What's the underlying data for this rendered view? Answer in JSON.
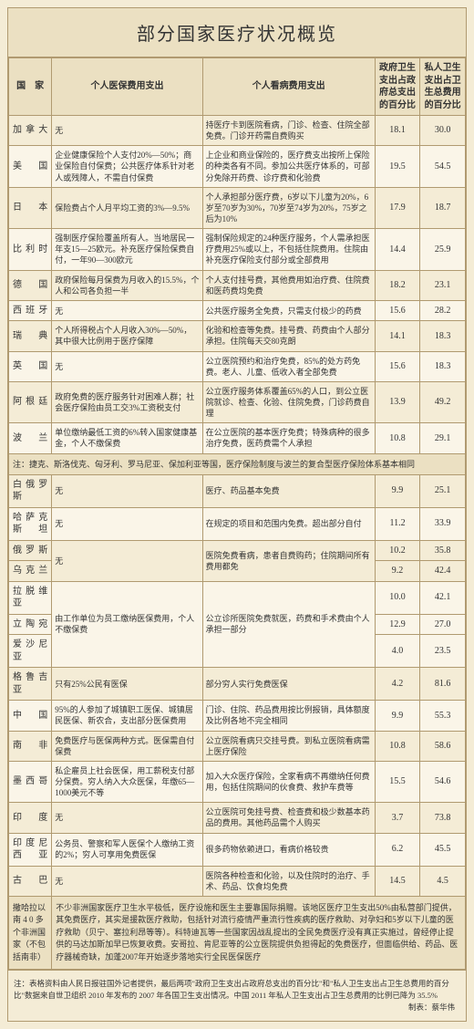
{
  "title": "部分国家医疗状况概览",
  "headers": {
    "country": "国　家",
    "premium": "个人医保费用支出",
    "treatment": "个人看病费用支出",
    "gov_pct": "政府卫生支出占政府总支出的百分比",
    "priv_pct": "私人卫生支出占卫生总费用的百分比"
  },
  "rows": [
    {
      "country": "加拿大",
      "premium": "无",
      "treatment": "持医疗卡到医院看病，门诊、检查、住院全部免费。门诊开药需自费购买",
      "gov": "18.1",
      "priv": "30.0"
    },
    {
      "country": "美　国",
      "premium": "企业健康保险个人支付20%—50%；商业保险自付保费；公共医疗体系针对老人或残障人，不需自付保费",
      "treatment": "上企业和商业保险的，医疗费支出按所上保险的种类各有不同。参加公共医疗体系的，可部分免除开药费、诊疗费和化验费",
      "gov": "19.5",
      "priv": "54.5"
    },
    {
      "country": "日　本",
      "premium": "保险费占个人月平均工资的3%—9.5%",
      "treatment": "个人承担部分医疗费，6岁以下儿童为20%，6岁至70岁为30%，70岁至74岁为20%，75岁之后为10%",
      "gov": "17.9",
      "priv": "18.7"
    },
    {
      "country": "比利时",
      "premium": "强制医疗保险覆盖所有人。当地居民一年支15—25欧元。补充医疗保险保费自付，一年90—300欧元",
      "treatment": "强制保险规定的24种医疗服务，个人需承担医疗费用25%或以上，不包括住院费用。住院由补充医疗保险支付部分或全部费用",
      "gov": "14.4",
      "priv": "25.9"
    },
    {
      "country": "德　国",
      "premium": "政府保险每月保费为月收入的15.5%，个人和公司各负担一半",
      "treatment": "个人支付挂号费，其他费用如治疗费、住院费和医药费均免费",
      "gov": "18.2",
      "priv": "23.1"
    },
    {
      "country": "西班牙",
      "premium": "无",
      "treatment": "公共医疗服务全免费，只需支付极少的药费",
      "gov": "15.6",
      "priv": "28.2"
    },
    {
      "country": "瑞　典",
      "premium": "个人所得税占个人月收入30%—50%，其中很大比例用于医疗保障",
      "treatment": "化验和检查等免费。挂号费、药费由个人部分承担。住院每天交80克朗",
      "gov": "14.1",
      "priv": "18.3"
    },
    {
      "country": "英　国",
      "premium": "无",
      "treatment": "公立医院预约和治疗免费，85%的处方药免费。老人、儿童、低收入者全部免费",
      "gov": "15.6",
      "priv": "18.3"
    },
    {
      "country": "阿根廷",
      "premium": "政府免费的医疗服务针对困难人群；社会医疗保险由员工交3%工资税支付",
      "treatment": "公立医疗服务体系覆盖65%的人口，到公立医院就诊、检查、化验、住院免费，门诊药费自理",
      "gov": "13.9",
      "priv": "49.2"
    },
    {
      "country": "波　兰",
      "premium": "单位缴纳最低工资的6%转入国家健康基金，个人不缴保费",
      "treatment": "在公立医院的基本医疗免费；特殊病种的很多治疗免费，医药费需个人承担",
      "gov": "10.8",
      "priv": "29.1"
    }
  ],
  "note1": "注：捷克、斯洛伐克、匈牙利、罗马尼亚、保加利亚等国，医疗保险制度与波兰的复合型医疗保险体系基本相同",
  "rows2": [
    {
      "country": "白俄罗斯",
      "premium": "无",
      "treatment": "医疗、药品基本免费",
      "gov": "9.9",
      "priv": "25.1"
    },
    {
      "country": "哈萨克斯坦",
      "premium": "无",
      "treatment": "在规定的项目和范围内免费。超出部分自付",
      "gov": "11.2",
      "priv": "33.9"
    },
    {
      "country": "俄罗斯",
      "premium": "无",
      "treatment": "医院免费看病，患者自费购药；住院期间所有费用都免",
      "gov": "10.2",
      "priv": "35.8",
      "sub": [
        {
          "country": "乌克兰",
          "gov": "9.2",
          "priv": "42.4"
        }
      ]
    },
    {
      "country": "拉脱维亚",
      "premium": "由工作单位为员工缴纳医保费用，个人不缴保费",
      "treatment": "公立诊所医院免费就医，药费和手术费由个人承担一部分",
      "gov": "10.0",
      "priv": "42.1",
      "sub": [
        {
          "country": "立陶宛",
          "gov": "12.9",
          "priv": "27.0"
        },
        {
          "country": "爱沙尼亚",
          "gov": "4.0",
          "priv": "23.5"
        }
      ]
    },
    {
      "country": "格鲁吉亚",
      "premium": "只有25%公民有医保",
      "treatment": "部分穷人实行免费医保",
      "gov": "4.2",
      "priv": "81.6"
    },
    {
      "country": "中　国",
      "premium": "95%的人参加了城镇职工医保、城镇居民医保、新农合，支出部分医保费用",
      "treatment": "门诊、住院、药品费用按比例报销，具体额度及比例各地不完全相同",
      "gov": "9.9",
      "priv": "55.3"
    },
    {
      "country": "南　非",
      "premium": "免费医疗与医保两种方式。医保需自付保费",
      "treatment": "公立医院看病只交挂号费。到私立医院看病需上医疗保险",
      "gov": "10.8",
      "priv": "58.6"
    },
    {
      "country": "墨西哥",
      "premium": "私企雇员上社会医保，用工薪税支付部分保费。穷人纳入大众医保，年缴65—1000美元不等",
      "treatment": "加入大众医疗保险，全家看病不再缴纳任何费用，包括住院期间的伙食费、救护车费等",
      "gov": "15.5",
      "priv": "54.6"
    },
    {
      "country": "印　度",
      "premium": "无",
      "treatment": "公立医院可免挂号费、检查费和极少数基本药品的费用。其他药品需个人购买",
      "gov": "3.7",
      "priv": "73.8"
    },
    {
      "country": "印度尼西亚",
      "premium": "公务员、警察和军人医保个人缴纳工资的2%；穷人可享用免费医保",
      "treatment": "很多药物依赖进口，看病价格较贵",
      "gov": "6.2",
      "priv": "45.5"
    },
    {
      "country": "古　巴",
      "premium": "无",
      "treatment": "医院各种检查和化验，以及住院时的治疗、手术、药品、饮食均免费",
      "gov": "14.5",
      "priv": "4.5"
    }
  ],
  "africa": {
    "label": "撒哈拉以南 4 0 多个非洲国家（不包括南非）",
    "text": "不少非洲国家医疗卫生水平极低，医疗设施和医生主要靠国际捐赠。该地区医疗卫生支出50%由私营部门提供，其免费医疗，其实是援款医疗救助，包括针对流行疫情严重流行性疾病的医疗救助、对孕妇和5岁以下儿童的医疗救助（贝宁、塞拉利昂等等）。科特迪瓦等一些国家因战乱提出的全民免费医疗没有真正实施过，曾经停止提供的马达加斯加早已恢复收费。安哥拉、肯尼亚等的公立医院提供负担得起的免费医疗，但面临供给、药品、医疗器械奇缺，加蓬2007年开始逐步落地实行全民医保医疗"
  },
  "footnote": "注：表格资料由人民日报驻国外记者提供，最后两项\"政府卫生支出占政府总支出的百分比\"和\"私人卫生支出占卫生总费用的百分比\"数据来自世卫组织 2010 年发布的 2007 年各国卫生支出情况。中国 2011 年私人卫生支出占卫生总费用的比例已降为 35.5%",
  "credit": "制表：蔡华伟",
  "colors": {
    "bg": "#f4ecd6",
    "header_bg": "#ebe0c2",
    "border": "#b09a70",
    "alt_row": "#faf5e8"
  }
}
